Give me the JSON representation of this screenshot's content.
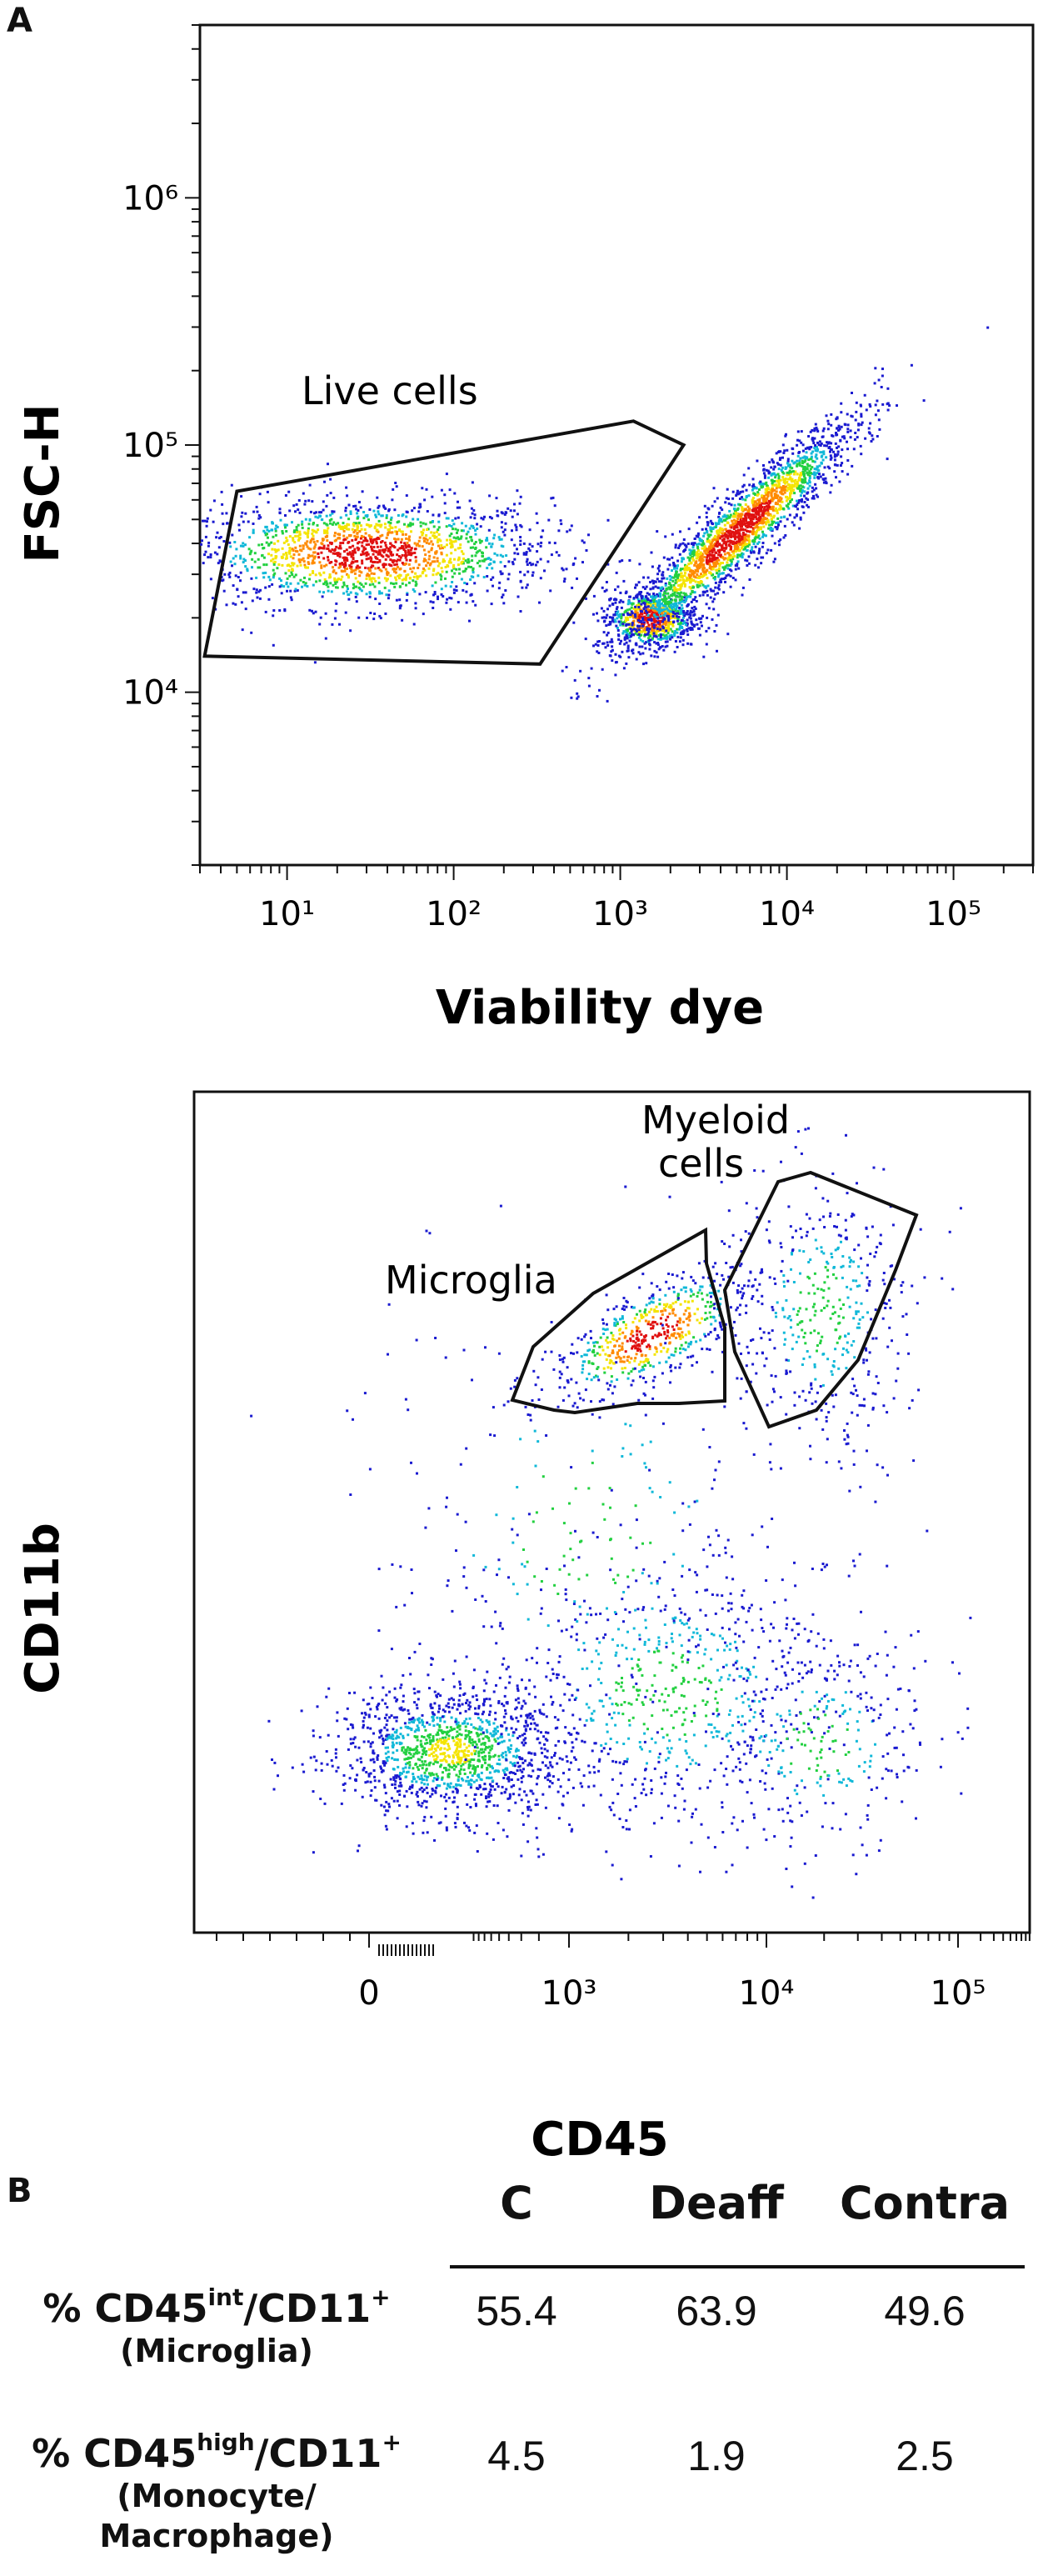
{
  "panels": {
    "a_label": "A",
    "b_label": "B"
  },
  "chart_data": [
    {
      "type": "scatter",
      "title": "",
      "xlabel": "Viability dye",
      "ylabel": "FSC-H",
      "x_scale": "log",
      "y_scale": "log",
      "x_ticks": [
        "10¹",
        "10²",
        "10³",
        "10⁴",
        "10⁵"
      ],
      "y_ticks": [
        "10⁴",
        "10⁵",
        "10⁶"
      ],
      "xlim": [
        3,
        300000
      ],
      "ylim": [
        2000,
        5000000
      ],
      "gates": [
        {
          "name": "Live cells",
          "polygon_x": [
            3.2,
            5,
            1200,
            2400,
            330,
            3.2
          ],
          "polygon_y": [
            14000,
            65000,
            125000,
            100000,
            13000,
            14000
          ]
        }
      ],
      "populations": [
        {
          "x_center": 30,
          "y_center": 37000,
          "x_spread": 0.55,
          "y_spread": 0.11,
          "count": 1700
        },
        {
          "x_center": 1500,
          "y_center": 20000,
          "x_spread": 0.14,
          "y_spread": 0.06,
          "count": 700
        },
        {
          "x_center": 5000,
          "y_center": 45000,
          "x_spread": 0.35,
          "y_spread": 0.22,
          "count": 2200
        }
      ]
    },
    {
      "type": "scatter",
      "title": "",
      "xlabel": "CD45",
      "ylabel": "CD11b",
      "x_scale": "biexponential",
      "y_scale": "biexponential",
      "x_ticks": [
        "0",
        "10³",
        "10⁴",
        "10⁵"
      ],
      "y_ticks": [
        "0",
        "10³",
        "10⁴",
        "10⁵"
      ],
      "gates": [
        {
          "name": "Microglia"
        },
        {
          "name": "Myeloid cells"
        }
      ]
    }
  ],
  "table": {
    "columns": [
      "C",
      "Deaff",
      "Contra"
    ],
    "rows": [
      {
        "label_prefix": "% CD45",
        "label_sup1": "int",
        "label_mid": "/CD11",
        "label_sup2": "+",
        "sublabel_lines": [
          "(Microglia)"
        ],
        "values": [
          "55.4",
          "63.9",
          "49.6"
        ]
      },
      {
        "label_prefix": "% CD45",
        "label_sup1": "high",
        "label_mid": "/CD11",
        "label_sup2": "+",
        "sublabel_lines": [
          "(Monocyte/",
          "Macrophage)"
        ],
        "values": [
          "4.5",
          "1.9",
          "2.5"
        ]
      }
    ]
  }
}
